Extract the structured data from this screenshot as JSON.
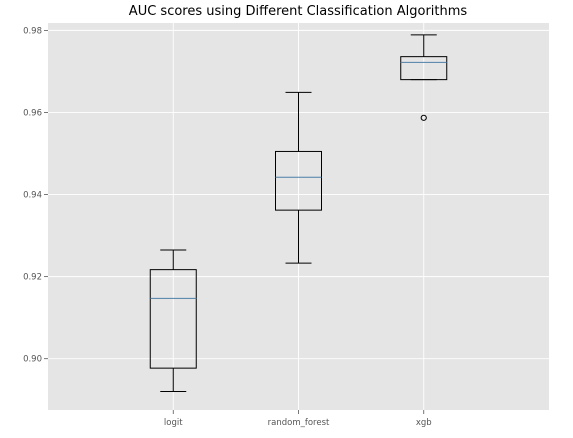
{
  "chart_data": {
    "type": "box",
    "title": "AUC scores using Different Classification Algorithms",
    "xlabel": "",
    "ylabel": "",
    "ylim": [
      0.8875,
      0.9818
    ],
    "yticks": [
      0.9,
      0.92,
      0.94,
      0.96,
      0.98
    ],
    "ytick_labels": [
      "0.90",
      "0.92",
      "0.94",
      "0.96",
      "0.98"
    ],
    "grid": true,
    "background": "#e5e5e5",
    "median_color": "#4d7fa8",
    "categories": [
      "logit",
      "random_forest",
      "xgb"
    ],
    "boxes": [
      {
        "category": "logit",
        "whislo": 0.892,
        "q1": 0.8977,
        "median": 0.9147,
        "q3": 0.9217,
        "whishi": 0.9265,
        "fliers": []
      },
      {
        "category": "random_forest",
        "whislo": 0.9233,
        "q1": 0.9362,
        "median": 0.9442,
        "q3": 0.9505,
        "whishi": 0.9649,
        "fliers": []
      },
      {
        "category": "xgb",
        "whislo": 0.968,
        "q1": 0.968,
        "median": 0.9722,
        "q3": 0.9736,
        "whishi": 0.9789,
        "fliers": [
          0.9587
        ]
      }
    ]
  }
}
